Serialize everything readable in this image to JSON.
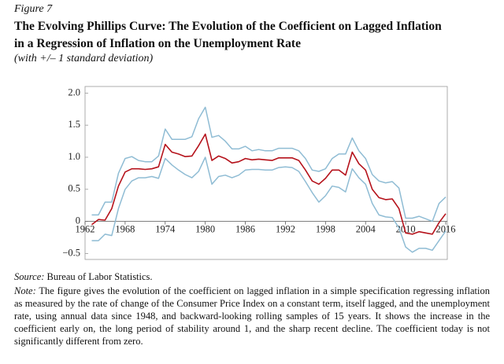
{
  "figure_label": "Figure 7",
  "title_lines": [
    "The Evolving Phillips Curve: The Evolution of the Coefficient on Lagged Inflation",
    "in a Regression of Inflation on the Unemployment Rate"
  ],
  "subtitle": "(with +/– 1 standard deviation)",
  "chart_data": {
    "type": "line",
    "x": [
      1963,
      1964,
      1965,
      1966,
      1967,
      1968,
      1969,
      1970,
      1971,
      1972,
      1973,
      1974,
      1975,
      1976,
      1977,
      1978,
      1979,
      1980,
      1981,
      1982,
      1983,
      1984,
      1985,
      1986,
      1987,
      1988,
      1989,
      1990,
      1991,
      1992,
      1993,
      1994,
      1995,
      1996,
      1997,
      1998,
      1999,
      2000,
      2001,
      2002,
      2003,
      2004,
      2005,
      2006,
      2007,
      2008,
      2009,
      2010,
      2011,
      2012,
      2013,
      2014,
      2015,
      2016
    ],
    "series": [
      {
        "color": "#8fbcd4",
        "values": [
          0.1,
          0.1,
          0.3,
          0.3,
          0.75,
          0.98,
          1.01,
          0.95,
          0.93,
          0.93,
          1.02,
          1.44,
          1.28,
          1.28,
          1.28,
          1.32,
          1.6,
          1.78,
          1.31,
          1.34,
          1.25,
          1.13,
          1.13,
          1.17,
          1.1,
          1.12,
          1.1,
          1.1,
          1.14,
          1.14,
          1.14,
          1.1,
          0.98,
          0.8,
          0.78,
          0.82,
          0.98,
          1.05,
          1.05,
          1.3,
          1.1,
          0.98,
          0.73,
          0.63,
          0.6,
          0.62,
          0.52,
          0.05,
          0.05,
          0.08,
          0.04,
          0.0,
          0.28,
          0.38
        ]
      },
      {
        "color": "#8fbcd4",
        "values": [
          -0.3,
          -0.3,
          -0.2,
          -0.22,
          0.2,
          0.5,
          0.63,
          0.68,
          0.68,
          0.7,
          0.67,
          0.98,
          0.88,
          0.8,
          0.73,
          0.68,
          0.78,
          1.0,
          0.58,
          0.7,
          0.72,
          0.68,
          0.72,
          0.8,
          0.81,
          0.81,
          0.8,
          0.8,
          0.84,
          0.85,
          0.84,
          0.78,
          0.62,
          0.45,
          0.3,
          0.4,
          0.55,
          0.53,
          0.46,
          0.82,
          0.68,
          0.58,
          0.28,
          0.1,
          0.07,
          0.06,
          -0.1,
          -0.4,
          -0.48,
          -0.42,
          -0.42,
          -0.45,
          -0.3,
          -0.15
        ]
      },
      {
        "color": "#b5121b",
        "values": [
          -0.05,
          0.03,
          0.02,
          0.2,
          0.55,
          0.77,
          0.82,
          0.82,
          0.81,
          0.82,
          0.85,
          1.2,
          1.08,
          1.05,
          1.01,
          1.02,
          1.18,
          1.36,
          0.95,
          1.02,
          0.98,
          0.91,
          0.93,
          0.98,
          0.96,
          0.97,
          0.96,
          0.95,
          0.99,
          0.99,
          0.99,
          0.95,
          0.8,
          0.63,
          0.58,
          0.67,
          0.8,
          0.8,
          0.72,
          1.08,
          0.9,
          0.8,
          0.5,
          0.37,
          0.34,
          0.35,
          0.2,
          -0.18,
          -0.2,
          -0.16,
          -0.18,
          -0.2,
          -0.02,
          0.12
        ]
      }
    ],
    "xlim": [
      1962,
      2016
    ],
    "xticks": [
      1962,
      1968,
      1974,
      1980,
      1986,
      1992,
      1998,
      2004,
      2010,
      2016
    ],
    "ylim": [
      -0.5,
      2.0
    ],
    "yticks": [
      {
        "value": -0.5,
        "label": "−0.5"
      },
      0,
      0.5,
      {
        "value": 1,
        "label": "1.0"
      },
      1.5,
      {
        "value": 2,
        "label": "2.0"
      }
    ]
  },
  "source_label": "Source:",
  "source": "Bureau of Labor Statistics.",
  "note_label": "Note:",
  "note": "The figure gives the evolution of the coefficient on lagged inflation in a simple specification regressing inflation as measured by the rate of change of the Consumer Price Index on a constant term, itself lagged, and the unemployment rate, using annual data since 1948, and backward-looking rolling samples of 15 years. It shows the increase in the coefficient early on, the long period of stability around 1, and the sharp recent decline. The coefficient today is not significantly different from zero."
}
